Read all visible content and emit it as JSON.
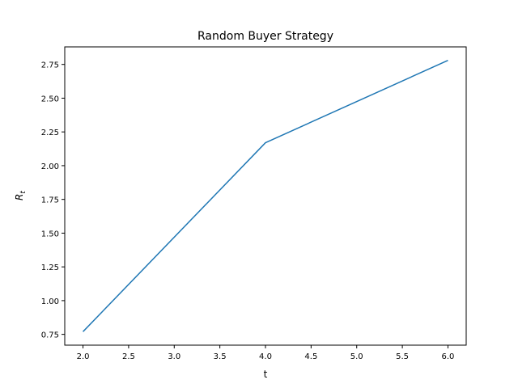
{
  "chart_data": {
    "type": "line",
    "title": "Random Buyer Strategy",
    "xlabel": "t",
    "ylabel": "R",
    "ylabel_subscript": "t",
    "xlim": [
      1.8,
      6.2
    ],
    "ylim": [
      0.67,
      2.88
    ],
    "xticks": [
      2.0,
      2.5,
      3.0,
      3.5,
      4.0,
      4.5,
      5.0,
      5.5,
      6.0
    ],
    "xtick_labels": [
      "2.0",
      "2.5",
      "3.0",
      "3.5",
      "4.0",
      "4.5",
      "5.0",
      "5.5",
      "6.0"
    ],
    "yticks": [
      0.75,
      1.0,
      1.25,
      1.5,
      1.75,
      2.0,
      2.25,
      2.5,
      2.75
    ],
    "ytick_labels": [
      "0.75",
      "1.00",
      "1.25",
      "1.50",
      "1.75",
      "2.00",
      "2.25",
      "2.50",
      "2.75"
    ],
    "grid": false,
    "series": [
      {
        "color": "#1f77b4",
        "x": [
          2,
          4,
          6
        ],
        "y": [
          0.77,
          2.17,
          2.78
        ]
      }
    ]
  }
}
